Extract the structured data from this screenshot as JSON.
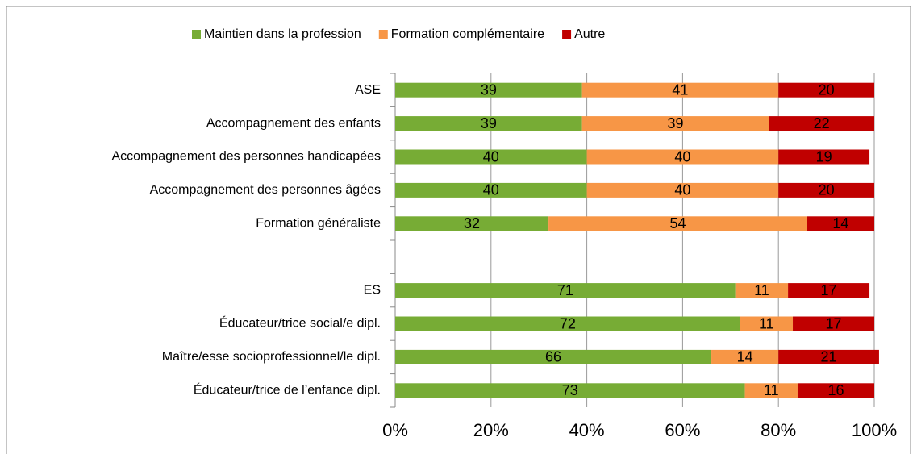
{
  "chart_data": {
    "type": "stacked_barh",
    "categories": [
      "ASE",
      "Accompagnement des enfants",
      "Accompagnement des personnes handicapées",
      "Accompagnement des personnes âgées",
      "Formation généraliste",
      null,
      "ES",
      "Éducateur/trice social/e dipl.",
      "Maître/esse socioprofessionnel/le dipl.",
      "Éducateur/trice de l’enfance dipl."
    ],
    "series": [
      {
        "name": "Maintien dans la profession",
        "color": "#77ac35",
        "values": [
          39,
          39,
          40,
          40,
          32,
          null,
          71,
          72,
          66,
          73
        ]
      },
      {
        "name": "Formation complémentaire",
        "color": "#f79646",
        "values": [
          41,
          39,
          40,
          40,
          54,
          null,
          11,
          11,
          14,
          11
        ]
      },
      {
        "name": "Autre",
        "color": "#c00000",
        "values": [
          20,
          22,
          19,
          20,
          14,
          null,
          17,
          17,
          21,
          16
        ]
      }
    ],
    "xlim": [
      0,
      100
    ],
    "xticks": [
      {
        "value": 0,
        "label": "0%"
      },
      {
        "value": 20,
        "label": "20%"
      },
      {
        "value": 40,
        "label": "40%"
      },
      {
        "value": 60,
        "label": "60%"
      },
      {
        "value": 80,
        "label": "80%"
      },
      {
        "value": 100,
        "label": "100%"
      }
    ],
    "grid": true,
    "legend": "top"
  }
}
